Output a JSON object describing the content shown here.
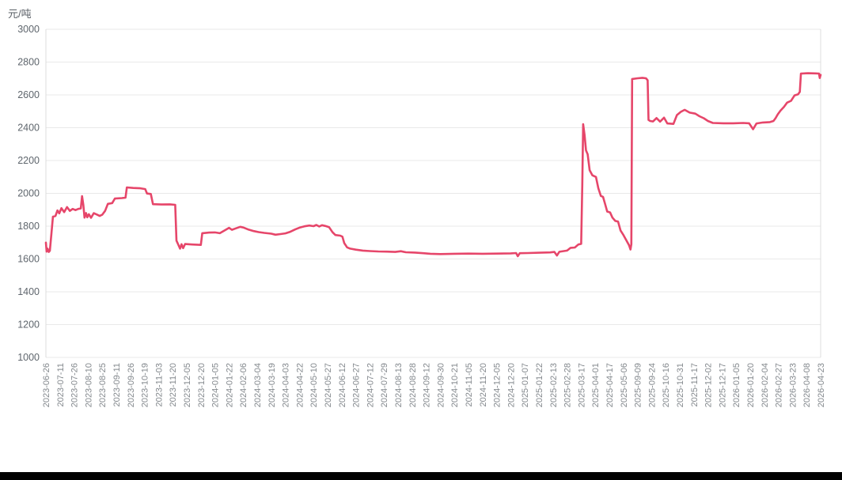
{
  "chart": {
    "unit_label": "元/吨",
    "line_color": "#e6466a",
    "grid_color": "#e9e9e9",
    "axis_border_color": "#dcdcdc",
    "y_tick_color": "#5f666d",
    "x_tick_color": "#83888d",
    "footer_bar_color": "#000000"
  },
  "chart_data": {
    "type": "line",
    "title": "",
    "xlabel": "",
    "ylabel": "元/吨",
    "ylim": [
      1000,
      3000
    ],
    "ytick_step": 200,
    "y_ticks": [
      3000,
      2800,
      2600,
      2400,
      2200,
      2000,
      1800,
      1600,
      1400,
      1200,
      1000
    ],
    "grid": true,
    "legend_position": "none",
    "categories": [
      "2023-06-26",
      "2023-07-11",
      "2023-07-26",
      "2023-08-10",
      "2023-08-25",
      "2023-09-11",
      "2023-09-26",
      "2023-10-19",
      "2023-11-03",
      "2023-11-20",
      "2023-12-05",
      "2023-12-20",
      "2024-01-05",
      "2024-01-22",
      "2024-02-06",
      "2024-03-04",
      "2024-03-19",
      "2024-04-03",
      "2024-04-22",
      "2024-05-10",
      "2024-05-27",
      "2024-06-12",
      "2024-06-27",
      "2024-07-12",
      "2024-07-29",
      "2024-08-13",
      "2024-08-28",
      "2024-09-12",
      "2024-09-30",
      "2024-10-21",
      "2024-11-05",
      "2024-11-20",
      "2024-12-05",
      "2024-12-20",
      "2025-01-07",
      "2025-01-22",
      "2025-02-13",
      "2025-02-28",
      "2025-03-17",
      "2025-04-01",
      "2025-04-17",
      "2025-05-06",
      "2025-09-09",
      "2025-09-24",
      "2025-10-16",
      "2025-10-31",
      "2025-11-17",
      "2025-12-02",
      "2025-12-17",
      "2026-01-05",
      "2026-01-20",
      "2026-02-04",
      "2026-02-27",
      "2026-03-23",
      "2026-04-08",
      "2026-04-23"
    ],
    "series": [
      {
        "color": "#e6466a",
        "points": [
          [
            0.0,
            1700
          ],
          [
            0.05,
            1645
          ],
          [
            0.12,
            1663
          ],
          [
            0.2,
            1643
          ],
          [
            0.28,
            1650
          ],
          [
            0.38,
            1745
          ],
          [
            0.5,
            1858
          ],
          [
            0.68,
            1862
          ],
          [
            0.82,
            1896
          ],
          [
            0.95,
            1878
          ],
          [
            1.1,
            1910
          ],
          [
            1.3,
            1886
          ],
          [
            1.5,
            1916
          ],
          [
            1.7,
            1893
          ],
          [
            1.9,
            1905
          ],
          [
            2.1,
            1898
          ],
          [
            2.3,
            1905
          ],
          [
            2.48,
            1908
          ],
          [
            2.57,
            1983
          ],
          [
            2.66,
            1930
          ],
          [
            2.74,
            1852
          ],
          [
            2.85,
            1880
          ],
          [
            2.94,
            1854
          ],
          [
            3.05,
            1873
          ],
          [
            3.2,
            1851
          ],
          [
            3.4,
            1879
          ],
          [
            3.62,
            1871
          ],
          [
            3.82,
            1862
          ],
          [
            4.0,
            1870
          ],
          [
            4.2,
            1893
          ],
          [
            4.4,
            1936
          ],
          [
            4.7,
            1940
          ],
          [
            4.9,
            1968
          ],
          [
            5.4,
            1971
          ],
          [
            5.65,
            1974
          ],
          [
            5.75,
            2036
          ],
          [
            6.2,
            2033
          ],
          [
            6.7,
            2031
          ],
          [
            7.05,
            2026
          ],
          [
            7.18,
            1999
          ],
          [
            7.45,
            1996
          ],
          [
            7.6,
            1934
          ],
          [
            8.2,
            1932
          ],
          [
            8.8,
            1933
          ],
          [
            9.18,
            1930
          ],
          [
            9.27,
            1712
          ],
          [
            9.4,
            1687
          ],
          [
            9.52,
            1663
          ],
          [
            9.63,
            1690
          ],
          [
            9.74,
            1666
          ],
          [
            9.88,
            1691
          ],
          [
            10.4,
            1688
          ],
          [
            11.0,
            1686
          ],
          [
            11.1,
            1757
          ],
          [
            11.6,
            1761
          ],
          [
            12.0,
            1762
          ],
          [
            12.35,
            1757
          ],
          [
            12.7,
            1775
          ],
          [
            13.0,
            1790
          ],
          [
            13.2,
            1778
          ],
          [
            13.5,
            1787
          ],
          [
            13.8,
            1796
          ],
          [
            14.05,
            1791
          ],
          [
            14.4,
            1779
          ],
          [
            14.75,
            1770
          ],
          [
            15.1,
            1764
          ],
          [
            15.5,
            1759
          ],
          [
            16.0,
            1754
          ],
          [
            16.3,
            1748
          ],
          [
            16.65,
            1752
          ],
          [
            17.0,
            1756
          ],
          [
            17.35,
            1766
          ],
          [
            17.7,
            1780
          ],
          [
            18.0,
            1791
          ],
          [
            18.35,
            1799
          ],
          [
            18.7,
            1804
          ],
          [
            19.0,
            1800
          ],
          [
            19.2,
            1807
          ],
          [
            19.4,
            1798
          ],
          [
            19.6,
            1806
          ],
          [
            19.85,
            1801
          ],
          [
            20.1,
            1794
          ],
          [
            20.35,
            1763
          ],
          [
            20.55,
            1746
          ],
          [
            20.9,
            1742
          ],
          [
            21.05,
            1736
          ],
          [
            21.18,
            1697
          ],
          [
            21.38,
            1671
          ],
          [
            21.6,
            1663
          ],
          [
            22.0,
            1657
          ],
          [
            22.5,
            1651
          ],
          [
            23.0,
            1648
          ],
          [
            23.6,
            1646
          ],
          [
            24.2,
            1645
          ],
          [
            24.8,
            1643
          ],
          [
            25.2,
            1647
          ],
          [
            25.55,
            1641
          ],
          [
            26.2,
            1639
          ],
          [
            26.8,
            1635
          ],
          [
            27.3,
            1632
          ],
          [
            28.0,
            1630
          ],
          [
            29.0,
            1632
          ],
          [
            30.0,
            1633
          ],
          [
            31.0,
            1632
          ],
          [
            32.0,
            1633
          ],
          [
            33.0,
            1634
          ],
          [
            33.38,
            1636
          ],
          [
            33.5,
            1617
          ],
          [
            33.64,
            1635
          ],
          [
            34.2,
            1636
          ],
          [
            35.0,
            1638
          ],
          [
            35.8,
            1640
          ],
          [
            36.1,
            1643
          ],
          [
            36.28,
            1621
          ],
          [
            36.45,
            1644
          ],
          [
            37.0,
            1651
          ],
          [
            37.25,
            1668
          ],
          [
            37.55,
            1670
          ],
          [
            37.8,
            1688
          ],
          [
            38.0,
            1692
          ],
          [
            38.08,
            2050
          ],
          [
            38.14,
            2421
          ],
          [
            38.24,
            2355
          ],
          [
            38.34,
            2262
          ],
          [
            38.46,
            2238
          ],
          [
            38.6,
            2141
          ],
          [
            38.8,
            2110
          ],
          [
            39.05,
            2100
          ],
          [
            39.22,
            2031
          ],
          [
            39.4,
            1984
          ],
          [
            39.55,
            1979
          ],
          [
            39.7,
            1934
          ],
          [
            39.85,
            1889
          ],
          [
            40.05,
            1884
          ],
          [
            40.22,
            1852
          ],
          [
            40.42,
            1832
          ],
          [
            40.62,
            1828
          ],
          [
            40.8,
            1773
          ],
          [
            41.0,
            1746
          ],
          [
            41.2,
            1714
          ],
          [
            41.4,
            1684
          ],
          [
            41.5,
            1658
          ],
          [
            41.56,
            1690
          ],
          [
            41.62,
            2697
          ],
          [
            42.0,
            2701
          ],
          [
            42.35,
            2704
          ],
          [
            42.6,
            2701
          ],
          [
            42.72,
            2689
          ],
          [
            42.78,
            2447
          ],
          [
            42.9,
            2441
          ],
          [
            43.1,
            2438
          ],
          [
            43.35,
            2459
          ],
          [
            43.6,
            2437
          ],
          [
            43.88,
            2461
          ],
          [
            44.12,
            2426
          ],
          [
            44.55,
            2423
          ],
          [
            44.8,
            2477
          ],
          [
            45.08,
            2497
          ],
          [
            45.35,
            2509
          ],
          [
            45.7,
            2492
          ],
          [
            46.1,
            2486
          ],
          [
            46.4,
            2470
          ],
          [
            46.7,
            2458
          ],
          [
            47.0,
            2441
          ],
          [
            47.35,
            2429
          ],
          [
            48.1,
            2427
          ],
          [
            48.8,
            2427
          ],
          [
            49.5,
            2429
          ],
          [
            49.92,
            2427
          ],
          [
            50.06,
            2409
          ],
          [
            50.2,
            2391
          ],
          [
            50.45,
            2426
          ],
          [
            50.9,
            2432
          ],
          [
            51.4,
            2434
          ],
          [
            51.65,
            2441
          ],
          [
            51.8,
            2458
          ],
          [
            51.96,
            2482
          ],
          [
            52.15,
            2504
          ],
          [
            52.4,
            2527
          ],
          [
            52.62,
            2553
          ],
          [
            52.9,
            2564
          ],
          [
            53.15,
            2597
          ],
          [
            53.4,
            2604
          ],
          [
            53.52,
            2619
          ],
          [
            53.6,
            2730
          ],
          [
            54.1,
            2732
          ],
          [
            54.6,
            2731
          ],
          [
            54.88,
            2730
          ],
          [
            54.94,
            2703
          ],
          [
            55.0,
            2722
          ]
        ]
      }
    ]
  }
}
